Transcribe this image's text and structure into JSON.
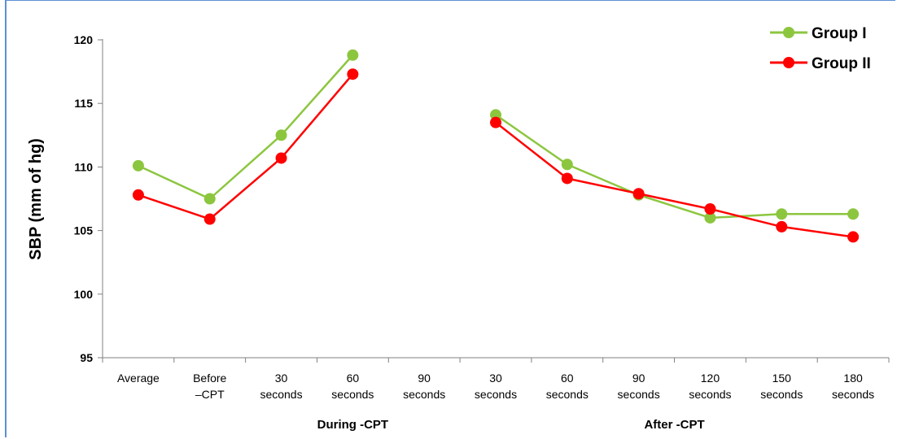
{
  "chart_data": {
    "type": "line",
    "ylabel": "SBP (mm of hg)",
    "ylim": [
      95,
      120
    ],
    "yticks": [
      95,
      100,
      105,
      110,
      115,
      120
    ],
    "categories": [
      [
        "Average"
      ],
      [
        "Before",
        "–CPT"
      ],
      [
        "30",
        "seconds"
      ],
      [
        "60",
        "seconds"
      ],
      [
        "90",
        "seconds"
      ],
      [
        "30",
        "seconds"
      ],
      [
        "60",
        "seconds"
      ],
      [
        "90",
        "seconds"
      ],
      [
        "120",
        "seconds"
      ],
      [
        "150",
        "seconds"
      ],
      [
        "180",
        "seconds"
      ]
    ],
    "groups": [
      {
        "label": "During -CPT",
        "from": 2,
        "to": 4
      },
      {
        "label": "After -CPT",
        "from": 5,
        "to": 10
      }
    ],
    "series": [
      {
        "name": "Group I",
        "color": "#8cc63f",
        "values": [
          110.1,
          107.5,
          112.5,
          118.8,
          null,
          114.1,
          110.2,
          107.8,
          106.0,
          106.3,
          106.3
        ]
      },
      {
        "name": "Group II",
        "color": "#ff0000",
        "values": [
          107.8,
          105.9,
          110.7,
          117.3,
          null,
          113.5,
          109.1,
          107.9,
          106.7,
          105.3,
          104.5
        ]
      }
    ],
    "legend": "top-right",
    "grid": false
  }
}
